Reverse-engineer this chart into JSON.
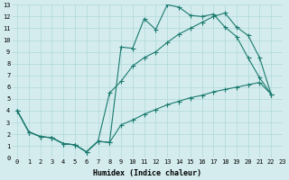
{
  "xlabel": "Humidex (Indice chaleur)",
  "bg_color": "#d4ecee",
  "grid_color": "#b0d8da",
  "line_color": "#1a7a6e",
  "xlim": [
    -0.5,
    23
  ],
  "ylim": [
    0,
    13
  ],
  "xticks": [
    0,
    1,
    2,
    3,
    4,
    5,
    6,
    7,
    8,
    9,
    10,
    11,
    12,
    13,
    14,
    15,
    16,
    17,
    18,
    19,
    20,
    21,
    22,
    23
  ],
  "yticks": [
    0,
    1,
    2,
    3,
    4,
    5,
    6,
    7,
    8,
    9,
    10,
    11,
    12,
    13
  ],
  "series1_x": [
    0,
    1,
    2,
    3,
    4,
    5,
    6,
    7,
    8,
    9,
    10,
    11,
    12,
    13,
    14,
    15,
    16,
    17,
    18,
    19,
    20,
    21,
    22
  ],
  "series1_y": [
    4.0,
    2.2,
    1.8,
    1.7,
    1.2,
    1.1,
    0.5,
    1.4,
    1.3,
    9.4,
    9.3,
    11.8,
    10.9,
    13.0,
    12.8,
    12.1,
    12.0,
    12.2,
    11.1,
    10.3,
    8.5,
    6.8,
    5.4
  ],
  "series2_x": [
    0,
    1,
    2,
    3,
    4,
    5,
    6,
    7,
    8,
    9,
    10,
    11,
    12,
    13,
    14,
    15,
    16,
    17,
    18,
    19,
    20,
    21,
    22
  ],
  "series2_y": [
    4.0,
    2.2,
    1.8,
    1.7,
    1.2,
    1.1,
    0.5,
    1.4,
    5.5,
    6.5,
    7.8,
    8.5,
    9.0,
    9.8,
    10.5,
    11.0,
    11.5,
    12.0,
    12.3,
    11.1,
    10.4,
    8.5,
    5.4
  ],
  "series3_x": [
    0,
    1,
    2,
    3,
    4,
    5,
    6,
    7,
    8,
    9,
    10,
    11,
    12,
    13,
    14,
    15,
    16,
    17,
    18,
    19,
    20,
    21,
    22
  ],
  "series3_y": [
    4.0,
    2.2,
    1.8,
    1.7,
    1.2,
    1.1,
    0.5,
    1.4,
    1.3,
    2.8,
    3.2,
    3.7,
    4.1,
    4.5,
    4.8,
    5.1,
    5.3,
    5.6,
    5.8,
    6.0,
    6.2,
    6.4,
    5.4
  ]
}
